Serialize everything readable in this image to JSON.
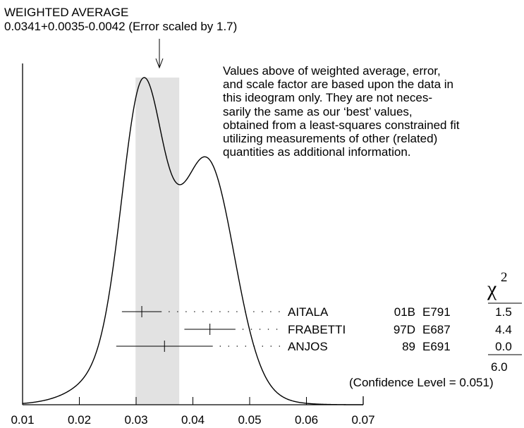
{
  "header": {
    "title": "WEIGHTED AVERAGE",
    "value_line": "0.0341+0.0035-0.0042 (Error scaled by 1.7)"
  },
  "note": {
    "lines": [
      "Values above of weighted average, error,",
      "and scale factor are based upon the data in",
      "this ideogram only.  They are not neces-",
      "sarily the same as our ‘best’ values,",
      "obtained from a least-squares constrained fit",
      "utilizing measurements of other (related)",
      "quantities as additional information."
    ]
  },
  "chi2_header": "χ",
  "chi2_sup": "2",
  "chi2_total": "6.0",
  "confidence": "(Confidence Level = 0.051)",
  "colors": {
    "band": "#e2e2e2",
    "line": "#000000"
  },
  "chart_data": {
    "type": "ideogram",
    "x_ticks": [
      "0.01",
      "0.02",
      "0.03",
      "0.04",
      "0.05",
      "0.06",
      "0.07"
    ],
    "xlim": [
      0.01,
      0.07
    ],
    "weighted_average": {
      "value": 0.0341,
      "err_plus": 0.0035,
      "err_minus": 0.0042,
      "scale_factor": 1.7
    },
    "measurements": [
      {
        "author": "AITALA",
        "year": "01B",
        "experiment": "E791",
        "value": 0.031,
        "err": 0.0035,
        "chi2": "1.5"
      },
      {
        "author": "FRABETTI",
        "year": "97D",
        "experiment": "E687",
        "value": 0.043,
        "err": 0.0045,
        "chi2": "4.4"
      },
      {
        "author": "ANJOS",
        "year": "89",
        "experiment": "E691",
        "value": 0.035,
        "err": 0.0085,
        "chi2": "0.0"
      }
    ]
  }
}
